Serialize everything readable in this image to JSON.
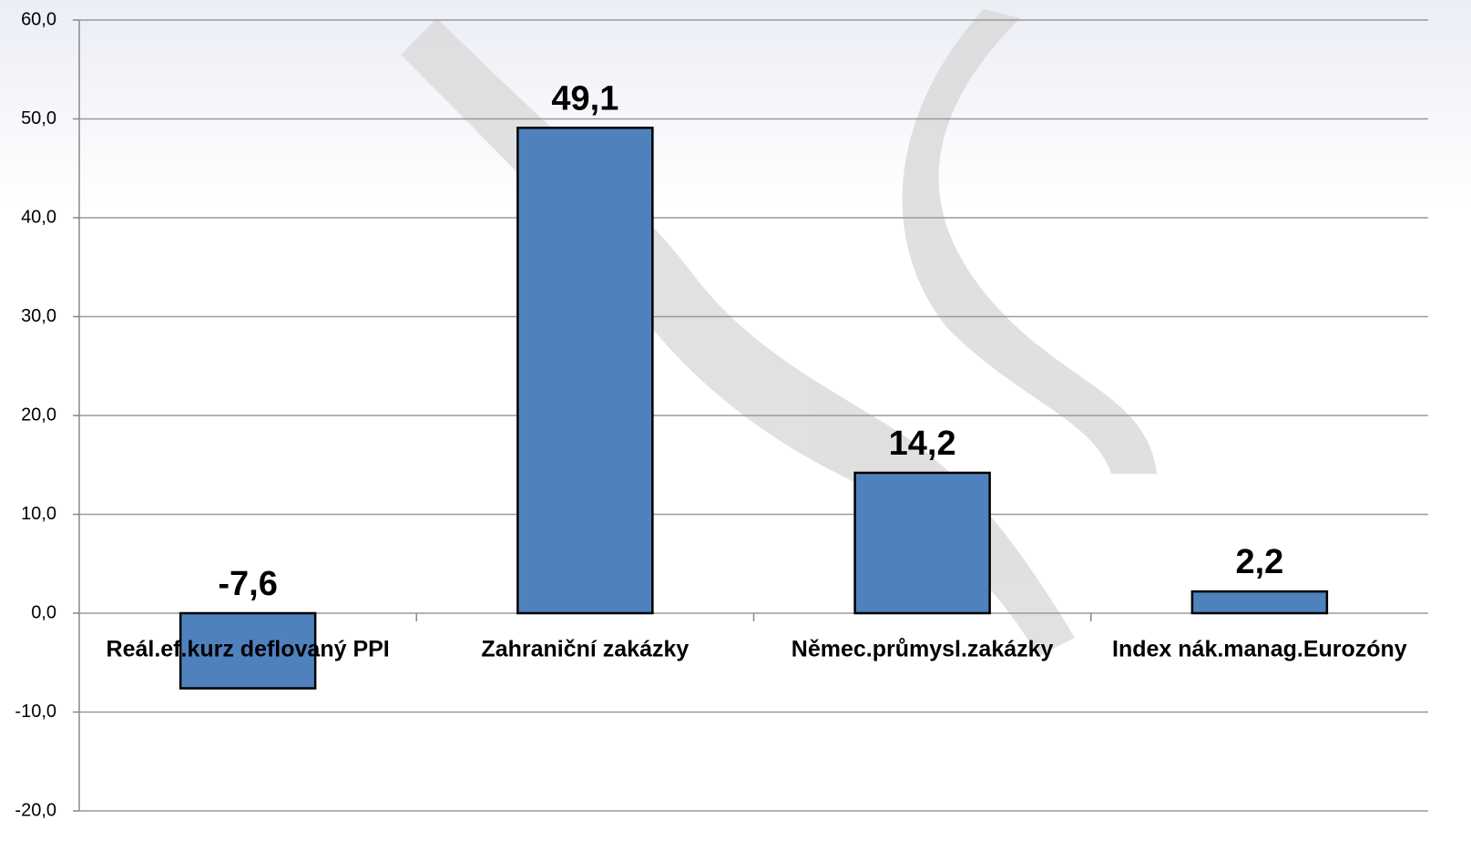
{
  "chart_data": {
    "type": "bar",
    "categories": [
      "Reál.ef.kurz deflovaný PPI",
      "Zahraniční zakázky",
      "Němec.průmysl.zakázky",
      "Index nák.manag.Eurozóny"
    ],
    "values": [
      -7.6,
      49.1,
      14.2,
      2.2
    ],
    "value_labels": [
      "-7,6",
      "49,1",
      "14,2",
      "2,2"
    ],
    "color": "#4f81bd",
    "ylim": [
      -20,
      60
    ],
    "yticks": [
      {
        "value": -20,
        "label": "-20,0"
      },
      {
        "value": -10,
        "label": "-10,0"
      },
      {
        "value": 0,
        "label": "0,0"
      },
      {
        "value": 10,
        "label": "10,0"
      },
      {
        "value": 20,
        "label": "20,0"
      },
      {
        "value": 30,
        "label": "30,0"
      },
      {
        "value": 40,
        "label": "40,0"
      },
      {
        "value": 50,
        "label": "50,0"
      },
      {
        "value": 60,
        "label": "60,0"
      }
    ],
    "grid": true
  }
}
